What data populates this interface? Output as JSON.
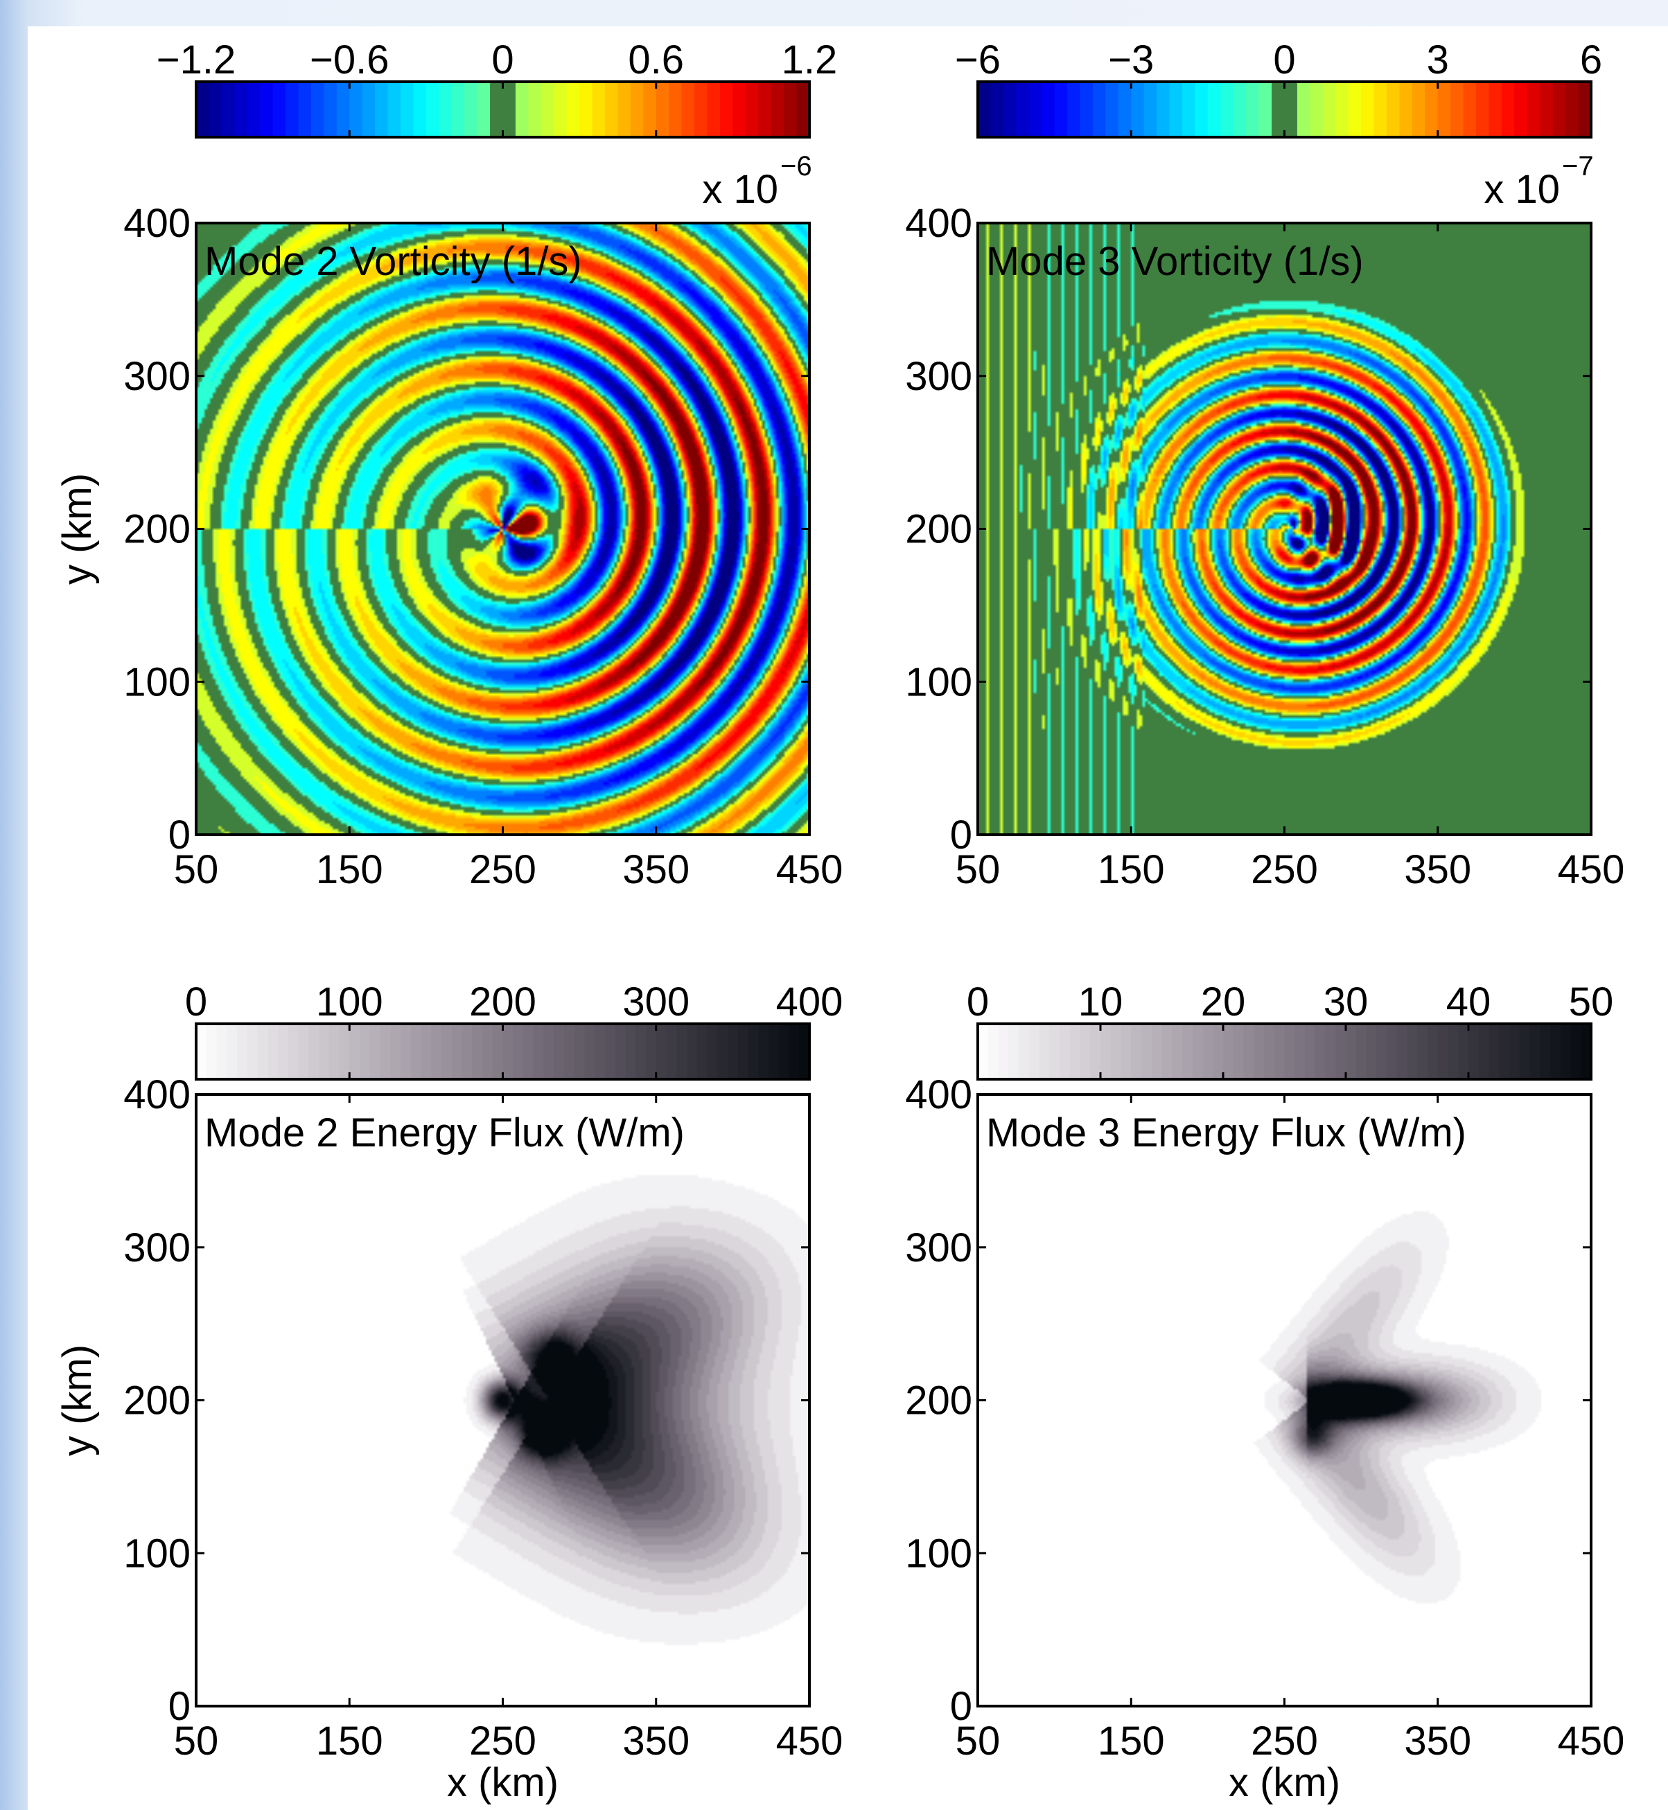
{
  "chart_data": [
    {
      "type": "heatmap",
      "title": "Mode 2 Vorticity (1/s)",
      "xlabel": "",
      "ylabel": "y (km)",
      "xlim": [
        50,
        450
      ],
      "ylim": [
        0,
        400
      ],
      "xticks": [
        "50",
        "150",
        "250",
        "350",
        "450"
      ],
      "yticks": [
        "0",
        "100",
        "200",
        "300",
        "400"
      ],
      "colormap": "jet",
      "zero_color": "#3f8040",
      "clim": [
        -1.2e-06,
        1.2e-06
      ],
      "colorbar": {
        "ticks": [
          "−1.2",
          "−0.6",
          "0",
          "0.6",
          "1.2"
        ],
        "tick_values": [
          -1.2,
          -0.6,
          0,
          0.6,
          1.2
        ],
        "multiplier": "x 10",
        "exponent": "−6",
        "range": [
          -1.2,
          1.2
        ]
      },
      "field": {
        "source": [
          250,
          200
        ],
        "amplitude": 1.0,
        "wavelength_km": 40,
        "rotating_arms": 1.4,
        "dipole_center": [
          262,
          205
        ]
      }
    },
    {
      "type": "heatmap",
      "title": "Mode 3 Vorticity (1/s)",
      "xlabel": "",
      "ylabel": "",
      "xlim": [
        50,
        450
      ],
      "ylim": [
        0,
        400
      ],
      "xticks": [
        "50",
        "150",
        "250",
        "350",
        "450"
      ],
      "yticks": [
        "0",
        "100",
        "200",
        "300",
        "400"
      ],
      "colormap": "jet",
      "zero_color": "#3f8040",
      "clim": [
        -6e-07,
        6e-07
      ],
      "colorbar": {
        "ticks": [
          "−6",
          "−3",
          "0",
          "3",
          "6"
        ],
        "tick_values": [
          -6,
          -3,
          0,
          3,
          6
        ],
        "multiplier": "x 10",
        "exponent": "−7",
        "range": [
          -6,
          6
        ]
      },
      "field": {
        "source": [
          250,
          200
        ],
        "amplitude": 1.0,
        "wavelength_km": 24,
        "rotating_arms": 1.6,
        "dipole_center": [
          280,
          200
        ]
      }
    },
    {
      "type": "heatmap",
      "title": "Mode 2 Energy Flux (W/m)",
      "xlabel": "x (km)",
      "ylabel": "y (km)",
      "xlim": [
        50,
        450
      ],
      "ylim": [
        0,
        400
      ],
      "xticks": [
        "50",
        "150",
        "250",
        "350",
        "450"
      ],
      "yticks": [
        "0",
        "100",
        "200",
        "300",
        "400"
      ],
      "colormap": "bone_reversed",
      "clim": [
        0,
        400
      ],
      "colorbar": {
        "ticks": [
          "0",
          "100",
          "200",
          "300",
          "400"
        ],
        "tick_values": [
          0,
          100,
          200,
          300,
          400
        ],
        "range": [
          0,
          400
        ]
      },
      "field": {
        "max_location": [
          250,
          200
        ],
        "beam_angles_deg": [
          30,
          -30
        ],
        "beam_extent_km": 190
      }
    },
    {
      "type": "heatmap",
      "title": "Mode 3 Energy Flux (W/m)",
      "xlabel": "x (km)",
      "ylabel": "",
      "xlim": [
        50,
        450
      ],
      "ylim": [
        0,
        400
      ],
      "xticks": [
        "50",
        "150",
        "250",
        "350",
        "450"
      ],
      "yticks": [
        "0",
        "100",
        "200",
        "300",
        "400"
      ],
      "colormap": "bone_reversed",
      "clim": [
        0,
        50
      ],
      "colorbar": {
        "ticks": [
          "0",
          "10",
          "20",
          "30",
          "40",
          "50"
        ],
        "tick_values": [
          0,
          10,
          20,
          30,
          40,
          50
        ],
        "range": [
          0,
          50
        ]
      },
      "field": {
        "max_location": [
          290,
          200
        ],
        "beam_angles_deg": [
          0,
          50,
          -50
        ],
        "beam_extent_km": 150
      }
    }
  ]
}
